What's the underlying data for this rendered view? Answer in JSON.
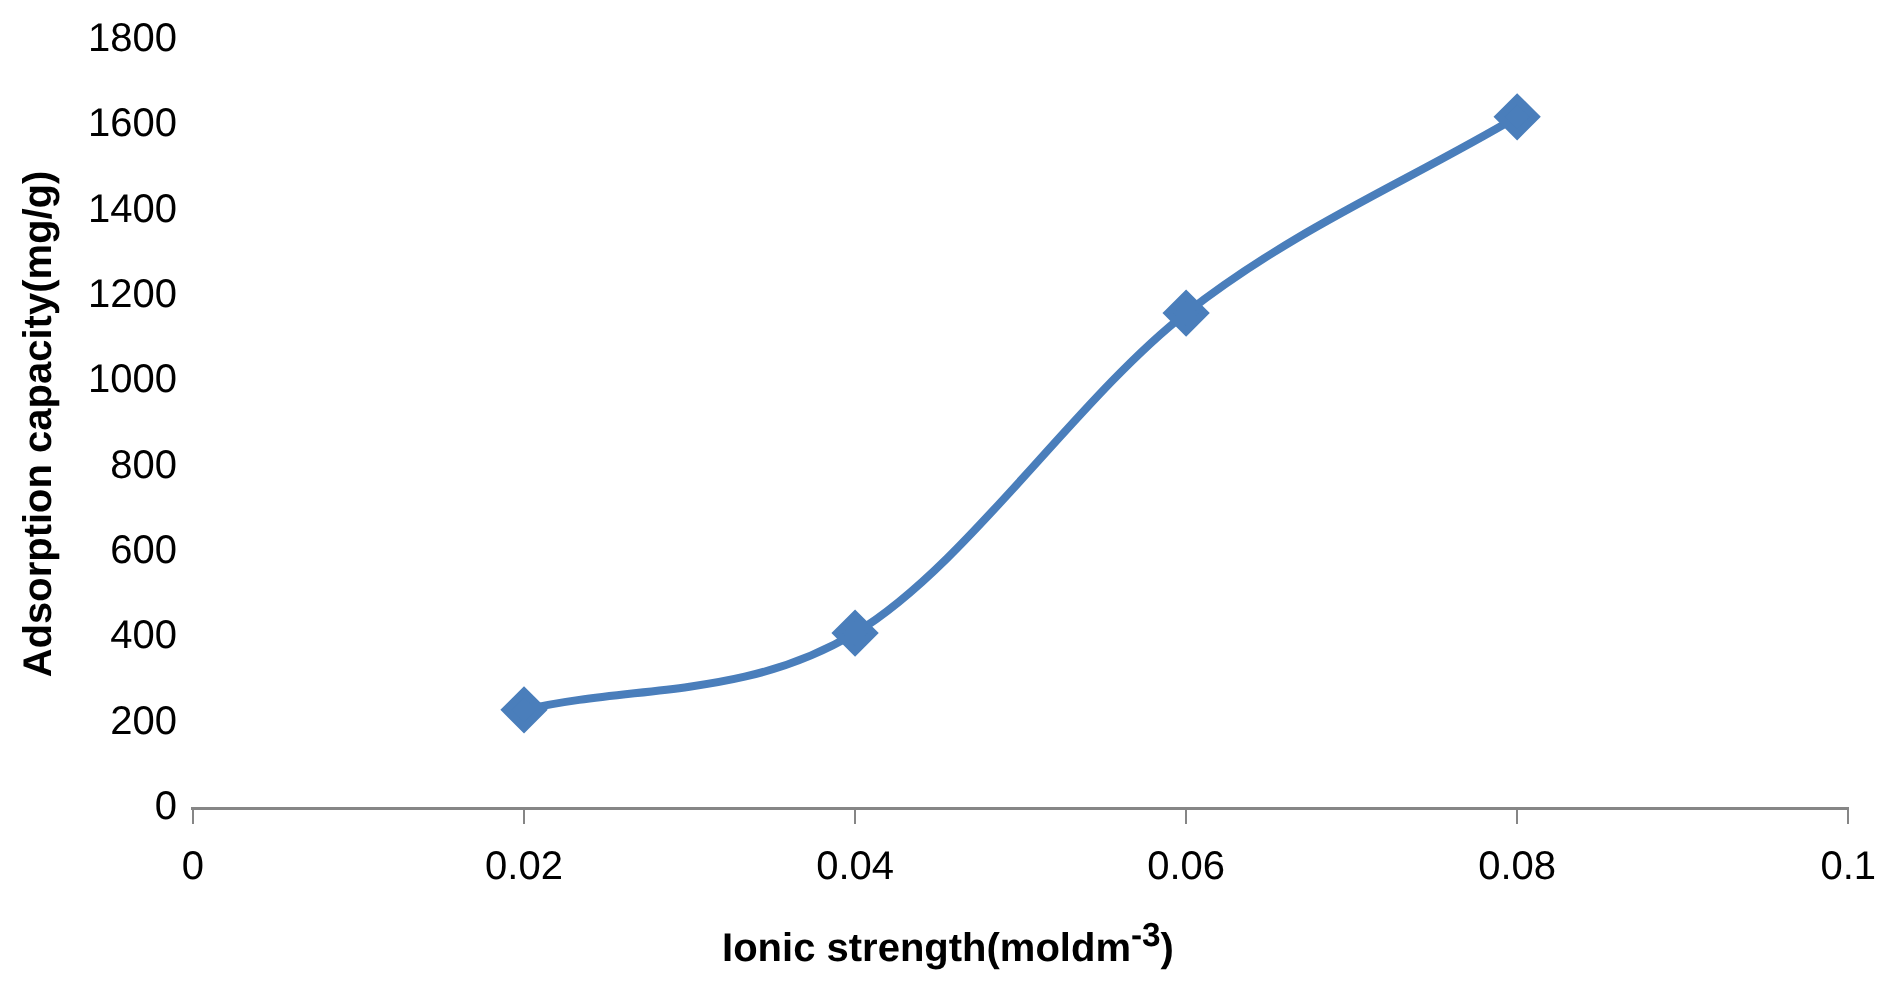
{
  "chart_data": {
    "type": "line",
    "xlabel": "Ionic strength(moldm$^{-3}$)",
    "ylabel": "Adsorption capacity(mg/g)",
    "x": [
      0.02,
      0.04,
      0.06,
      0.08
    ],
    "series": [
      {
        "color": "#4a7ebb",
        "values": [
          230,
          410,
          1160,
          1620
        ]
      }
    ],
    "xlim": [
      0,
      0.1
    ],
    "xticks": [
      0,
      0.02,
      0.04,
      0.06,
      0.08,
      0.1
    ],
    "ylim": [
      0,
      1800
    ],
    "yticks": [
      0,
      200,
      400,
      600,
      800,
      1000,
      1200,
      1400,
      1600,
      1800
    ],
    "grid": false,
    "legend": false,
    "marker": "diamond",
    "line_style": "solid"
  }
}
